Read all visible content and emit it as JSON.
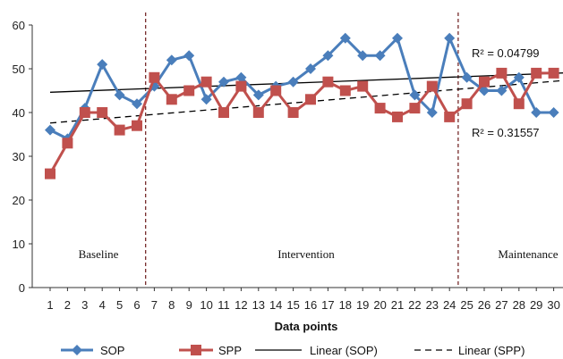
{
  "chart_data": {
    "type": "line",
    "xlabel": "Data points",
    "ylabel": "",
    "ylim": [
      0,
      60
    ],
    "yticks": [
      0,
      10,
      20,
      30,
      40,
      50,
      60
    ],
    "x": [
      1,
      2,
      3,
      4,
      5,
      6,
      7,
      8,
      9,
      10,
      11,
      12,
      13,
      14,
      15,
      16,
      17,
      18,
      19,
      20,
      21,
      22,
      23,
      24,
      25,
      26,
      27,
      28,
      29,
      30
    ],
    "series": [
      {
        "name": "SOP",
        "color": "#4a7ebb",
        "marker": "diamond",
        "values": [
          36,
          34,
          41,
          51,
          44,
          42,
          46,
          52,
          53,
          43,
          47,
          48,
          44,
          46,
          47,
          50,
          53,
          57,
          53,
          53,
          57,
          44,
          40,
          57,
          48,
          45,
          45,
          48,
          40,
          40
        ]
      },
      {
        "name": "SPP",
        "color": "#c0504d",
        "marker": "square",
        "values": [
          26,
          33,
          40,
          40,
          36,
          37,
          48,
          43,
          45,
          47,
          40,
          46,
          40,
          45,
          40,
          43,
          47,
          45,
          46,
          41,
          39,
          41,
          46,
          39,
          42,
          47,
          49,
          42,
          49,
          49
        ]
      }
    ],
    "trendlines": [
      {
        "name": "Linear (SOP)",
        "style": "solid",
        "r2_label": "R² = 0.04799"
      },
      {
        "name": "Linear (SPP)",
        "style": "dashed",
        "r2_label": "R² = 0.31557"
      }
    ],
    "phase_lines_at": [
      6.5,
      24.5
    ],
    "phases": [
      "Baseline",
      "Intervention",
      "Maintenance"
    ],
    "grid": false,
    "legend_position": "bottom"
  }
}
